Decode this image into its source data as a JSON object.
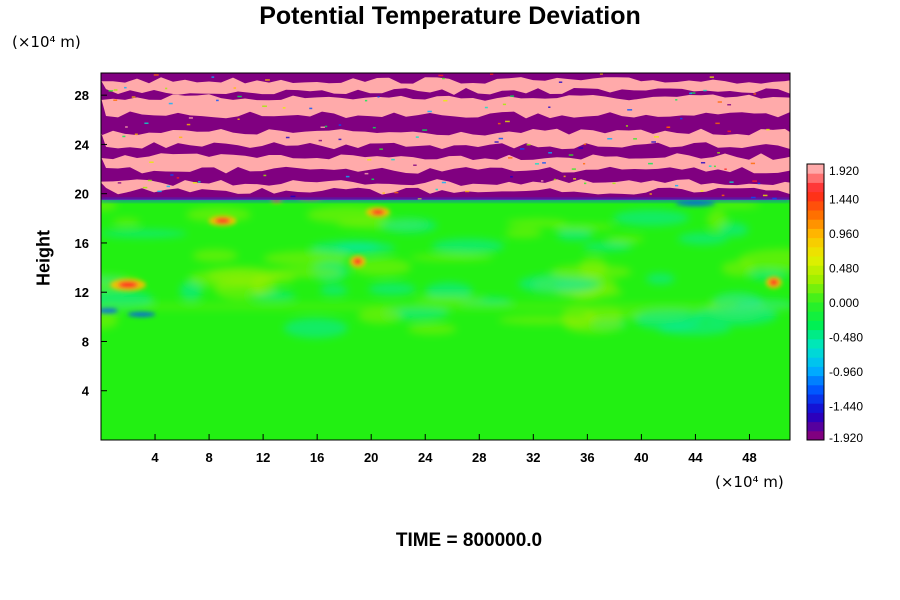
{
  "chart_data": {
    "type": "heatmap",
    "title": "Potential Temperature Deviation",
    "ylabel": "Height",
    "y_unit": "(×10⁴ m)",
    "x_unit": "(×10⁴ m)",
    "x_ticks": [
      "4",
      "8",
      "12",
      "16",
      "20",
      "24",
      "28",
      "32",
      "36",
      "40",
      "44",
      "48"
    ],
    "y_ticks": [
      "4",
      "8",
      "12",
      "16",
      "20",
      "24",
      "28"
    ],
    "xlim": [
      0,
      51
    ],
    "ylim": [
      0,
      29.8
    ],
    "colorbar": {
      "min": -1.92,
      "max": 1.92,
      "labels": [
        "1.920",
        "1.440",
        "0.960",
        "0.480",
        "0.000",
        "-0.480",
        "-0.960",
        "-1.440",
        "-1.920"
      ],
      "colors_low_to_high": [
        "#800080",
        "#1a00c8",
        "#0050ff",
        "#00b4ff",
        "#00e6c8",
        "#00f050",
        "#30f020",
        "#9ef000",
        "#e6f000",
        "#ffbe00",
        "#ff6a00",
        "#ff2020",
        "#ffaaaa"
      ]
    },
    "regions": [
      {
        "name": "upper layer",
        "y_range": [
          19.5,
          29.8
        ],
        "description_colors": [
          "#ffaaaa",
          "#800080"
        ]
      },
      {
        "name": "lower layer",
        "y_range": [
          0,
          19.5
        ],
        "base_value": 0.0
      }
    ],
    "grid": false,
    "legend": "colorbar-right"
  },
  "footer": {
    "time_label": "TIME = 800000.0"
  }
}
